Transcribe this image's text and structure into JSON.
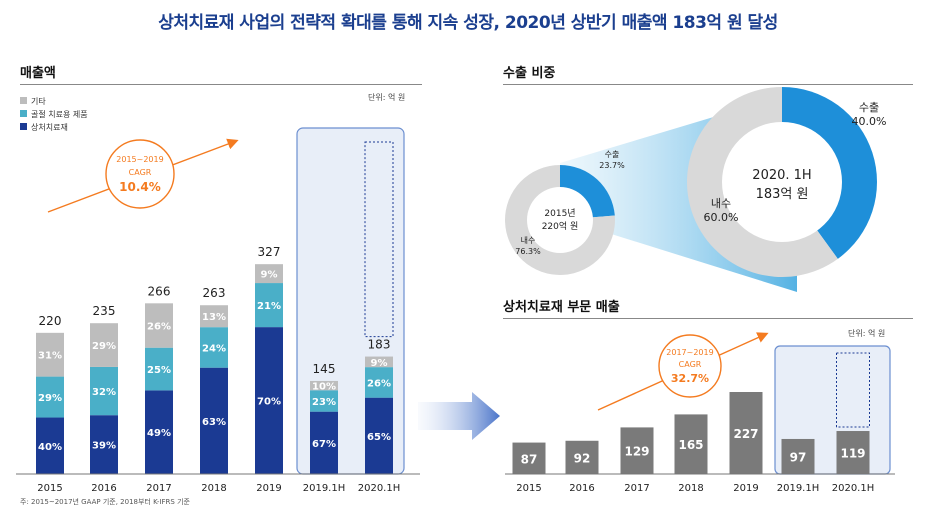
{
  "title": "상처치료재 사업의 전략적 확대를 통해 지속 성장, 2020년 상반기 매출액 183억 원 달성",
  "left": {
    "heading": "매출액",
    "unit": "단위: 억 원",
    "note": "주: 2015~2017년 GAAP 기준, 2018부터 K-IFRS 기준",
    "cagr": {
      "period": "2015~2019",
      "label": "CAGR",
      "value": "10.4%"
    }
  },
  "export": {
    "heading": "수출 비중",
    "small_center": [
      "2015년",
      "220억 원"
    ],
    "small_labels": {
      "export": [
        "수출",
        "23.7%"
      ],
      "domestic": [
        "내수",
        "76.3%"
      ]
    },
    "big_center": [
      "2020. 1H",
      "183억 원"
    ],
    "big_labels": {
      "export": [
        "수출",
        "40.0%"
      ],
      "domestic": [
        "내수",
        "60.0%"
      ]
    }
  },
  "right": {
    "heading": "상처치료재 부문 매출",
    "unit": "단위: 억 원",
    "cagr": {
      "period": "2017~2019",
      "label": "CAGR",
      "value": "32.7%"
    }
  },
  "colors": {
    "accent": "#f47b20",
    "navy": "#1b3a93",
    "teal": "#4aafc8",
    "grey": "#bdbdbd",
    "dark_grey": "#7a7a7a",
    "export_blue": "#1e8fd9",
    "highlight": "#e8eef8"
  },
  "chart_data": [
    {
      "type": "bar",
      "stacked": true,
      "categories": [
        "2015",
        "2016",
        "2017",
        "2018",
        "2019",
        "2019.1H",
        "2020.1H"
      ],
      "totals": [
        220,
        235,
        266,
        263,
        327,
        145,
        183
      ],
      "series": [
        {
          "name": "상처치료재",
          "values": [
            "40%",
            "39%",
            "49%",
            "63%",
            "70%",
            "67%",
            "65%"
          ]
        },
        {
          "name": "골절 치료용 제품",
          "values": [
            "29%",
            "32%",
            "25%",
            "24%",
            "21%",
            "23%",
            "26%"
          ]
        },
        {
          "name": "기타",
          "values": [
            "31%",
            "29%",
            "26%",
            "13%",
            "9%",
            "10%",
            "9%"
          ]
        }
      ]
    },
    {
      "type": "pie",
      "center_label": "2015년 220억 원",
      "slices": [
        {
          "name": "수출",
          "value": 23.7
        },
        {
          "name": "내수",
          "value": 76.3
        }
      ]
    },
    {
      "type": "pie",
      "center_label": "2020. 1H 183억 원",
      "slices": [
        {
          "name": "수출",
          "value": 40.0
        },
        {
          "name": "내수",
          "value": 60.0
        }
      ]
    },
    {
      "type": "bar",
      "categories": [
        "2015",
        "2016",
        "2017",
        "2018",
        "2019",
        "2019.1H",
        "2020.1H"
      ],
      "values": [
        87,
        92,
        129,
        165,
        227,
        97,
        119
      ]
    }
  ]
}
